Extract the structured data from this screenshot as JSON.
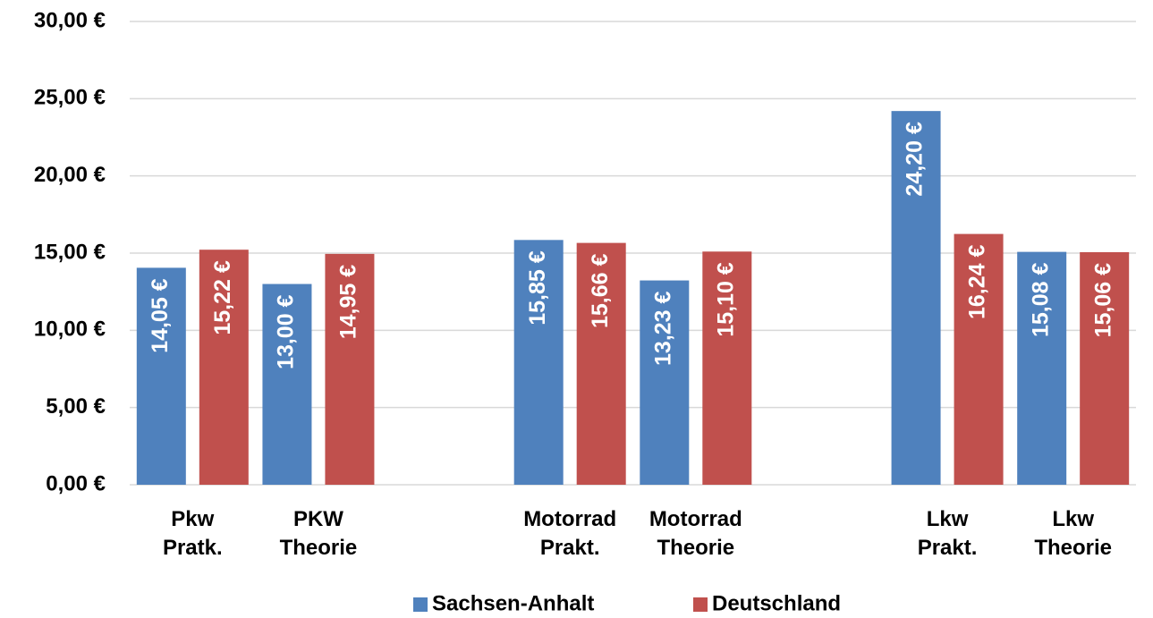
{
  "chart_data": {
    "type": "bar",
    "categories": [
      "Pkw Pratk.",
      "PKW Theorie",
      null,
      "Motorrad Prakt.",
      "Motorrad Theorie",
      null,
      "Lkw Prakt.",
      "Lkw Theorie"
    ],
    "series": [
      {
        "name": "Sachsen-Anhalt",
        "color": "#4f81bd",
        "values": [
          14.05,
          13.0,
          null,
          15.85,
          13.23,
          null,
          24.2,
          15.08
        ],
        "value_labels": [
          "14,05 €",
          "13,00 €",
          null,
          "15,85 €",
          "13,23 €",
          null,
          "24,20 €",
          "15,08 €"
        ]
      },
      {
        "name": "Deutschland",
        "color": "#c0504d",
        "values": [
          15.22,
          14.95,
          null,
          15.66,
          15.1,
          null,
          16.24,
          15.06
        ],
        "value_labels": [
          "15,22 €",
          "14,95 €",
          null,
          "15,66 €",
          "15,10 €",
          null,
          "16,24 €",
          "15,06 €"
        ]
      }
    ],
    "ylim": [
      0,
      30
    ],
    "yticks": [
      {
        "value": 0,
        "label": "0,00 €"
      },
      {
        "value": 5,
        "label": "5,00 €"
      },
      {
        "value": 10,
        "label": "10,00 €"
      },
      {
        "value": 15,
        "label": "15,00 €"
      },
      {
        "value": 20,
        "label": "20,00 €"
      },
      {
        "value": 25,
        "label": "25,00 €"
      },
      {
        "value": 30,
        "label": "30,00 €"
      }
    ],
    "grid": true,
    "legend": "bottom"
  }
}
